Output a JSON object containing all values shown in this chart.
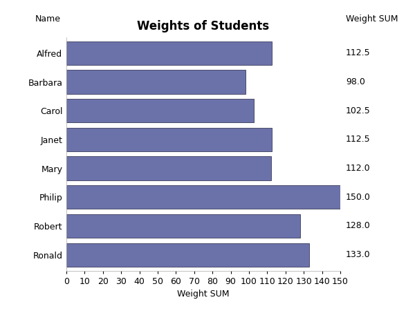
{
  "title": "Weights of Students",
  "names": [
    "Alfred",
    "Barbara",
    "Carol",
    "Janet",
    "Mary",
    "Philip",
    "Robert",
    "Ronald"
  ],
  "values": [
    112.5,
    98.0,
    102.5,
    112.5,
    112.0,
    150.0,
    128.0,
    133.0
  ],
  "bar_color": "#6b72aa",
  "bar_edge_color": "#3a3a5a",
  "xlabel": "Weight SUM",
  "ylabel_left": "Name",
  "ylabel_right": "Weight SUM",
  "xlim": [
    0,
    150
  ],
  "xticks": [
    0,
    10,
    20,
    30,
    40,
    50,
    60,
    70,
    80,
    90,
    100,
    110,
    120,
    130,
    140,
    150
  ],
  "title_fontsize": 12,
  "label_fontsize": 9,
  "tick_fontsize": 9,
  "value_fontsize": 9,
  "background_color": "#ffffff"
}
